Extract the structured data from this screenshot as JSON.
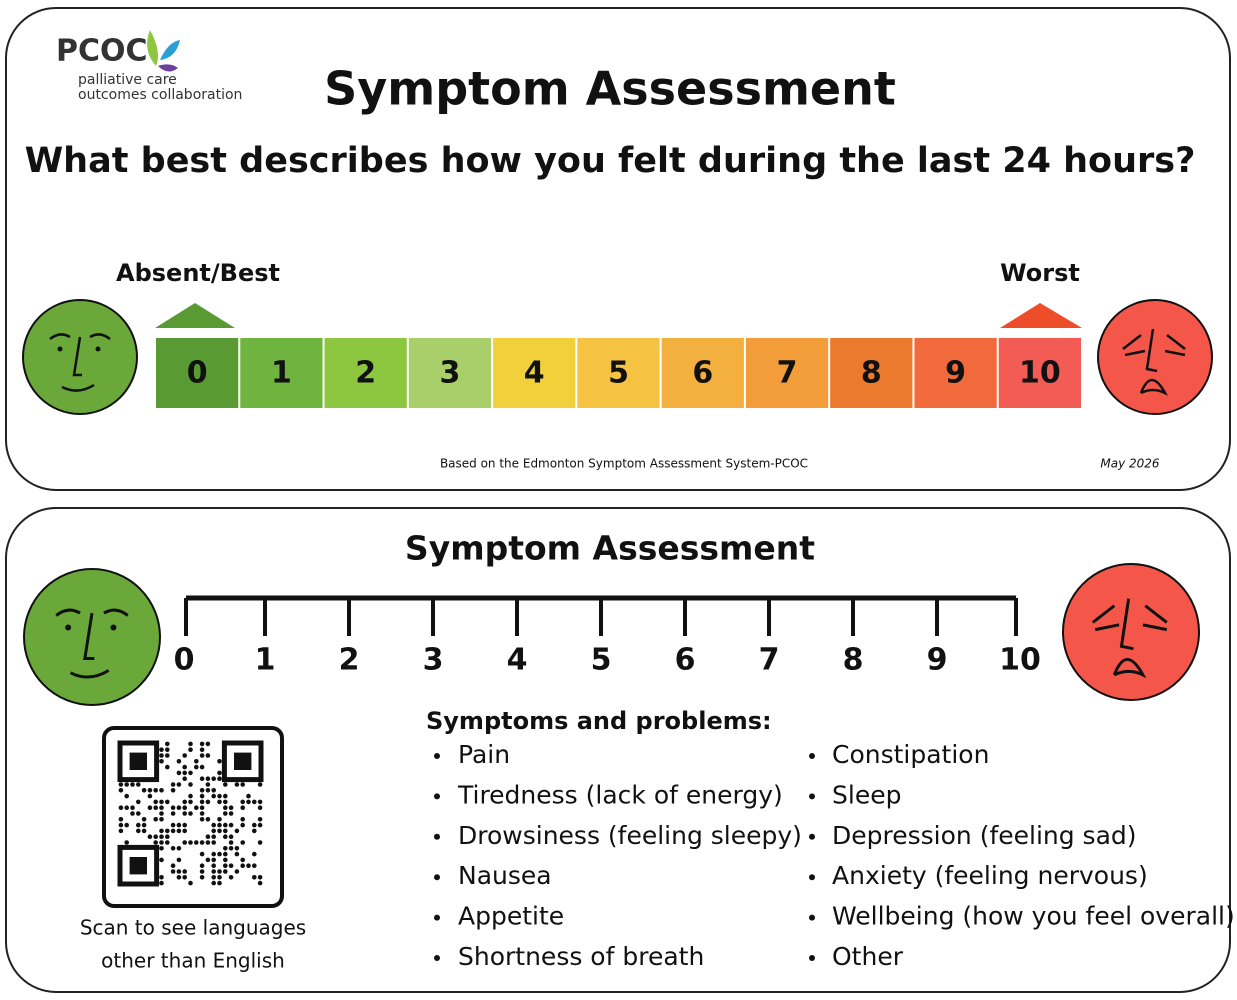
{
  "logo": {
    "name": "PCOC",
    "tagline_1": "palliative care",
    "tagline_2": "outcomes collaboration"
  },
  "card_1": {
    "title": "Symptom Assessment",
    "question": "What best describes how you felt during the last 24 hours?",
    "left_label": "Absent/Best",
    "right_label": "Worst",
    "scale": [
      0,
      1,
      2,
      3,
      4,
      5,
      6,
      7,
      8,
      9,
      10
    ],
    "footer": "Based on the Edmonton Symptom Assessment System-PCOC",
    "date": "May 2026"
  },
  "card_2": {
    "title": "Symptom Assessment",
    "scale": [
      0,
      1,
      2,
      3,
      4,
      5,
      6,
      7,
      8,
      9,
      10
    ],
    "list_heading": "Symptoms and problems:",
    "symptoms_left": [
      "Pain",
      "Tiredness (lack of energy)",
      "Drowsiness (feeling sleepy)",
      "Nausea",
      "Appetite",
      "Shortness of breath"
    ],
    "symptoms_right": [
      "Constipation",
      "Sleep",
      "Depression (feeling sad)",
      "Anxiety (feeling nervous)",
      "Wellbeing (how you feel overall)",
      "Other"
    ],
    "qr_caption_1": "Scan to see languages",
    "qr_caption_2": "other than English"
  }
}
